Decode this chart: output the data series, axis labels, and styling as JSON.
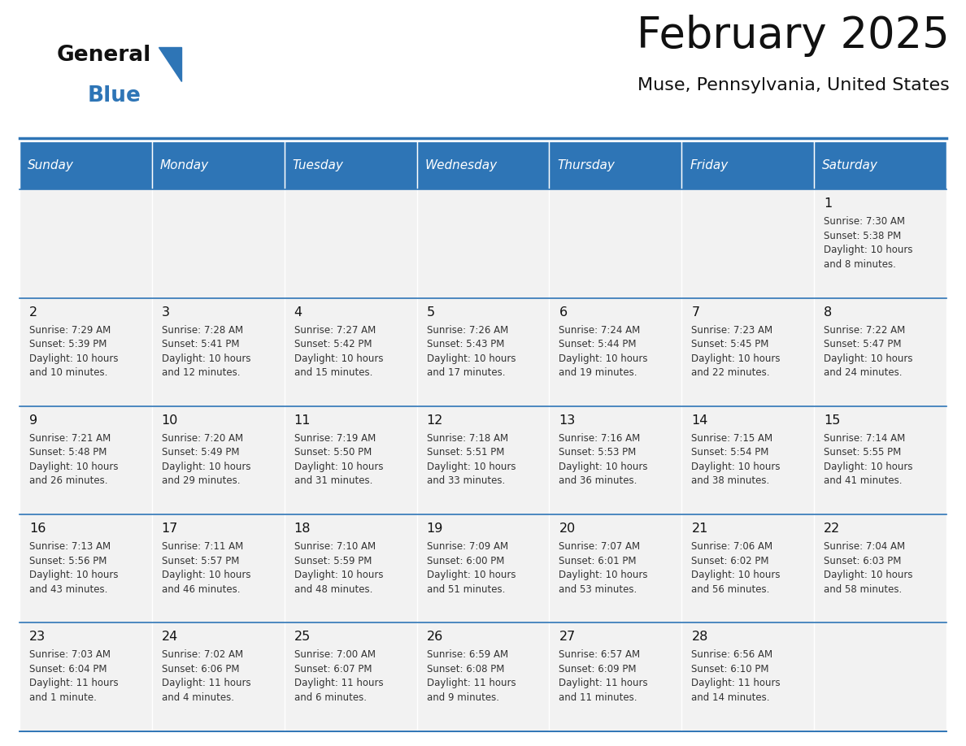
{
  "title": "February 2025",
  "subtitle": "Muse, Pennsylvania, United States",
  "header_bg": "#2E75B6",
  "header_text_color": "#FFFFFF",
  "cell_bg_odd": "#F2F2F2",
  "cell_bg_even": "#FFFFFF",
  "row_line_color": "#2E75B6",
  "text_color": "#333333",
  "days_of_week": [
    "Sunday",
    "Monday",
    "Tuesday",
    "Wednesday",
    "Thursday",
    "Friday",
    "Saturday"
  ],
  "calendar_data": [
    [
      null,
      null,
      null,
      null,
      null,
      null,
      {
        "day": "1",
        "sunrise": "7:30 AM",
        "sunset": "5:38 PM",
        "daylight": "10 hours",
        "daylight2": "and 8 minutes."
      }
    ],
    [
      {
        "day": "2",
        "sunrise": "7:29 AM",
        "sunset": "5:39 PM",
        "daylight": "10 hours",
        "daylight2": "and 10 minutes."
      },
      {
        "day": "3",
        "sunrise": "7:28 AM",
        "sunset": "5:41 PM",
        "daylight": "10 hours",
        "daylight2": "and 12 minutes."
      },
      {
        "day": "4",
        "sunrise": "7:27 AM",
        "sunset": "5:42 PM",
        "daylight": "10 hours",
        "daylight2": "and 15 minutes."
      },
      {
        "day": "5",
        "sunrise": "7:26 AM",
        "sunset": "5:43 PM",
        "daylight": "10 hours",
        "daylight2": "and 17 minutes."
      },
      {
        "day": "6",
        "sunrise": "7:24 AM",
        "sunset": "5:44 PM",
        "daylight": "10 hours",
        "daylight2": "and 19 minutes."
      },
      {
        "day": "7",
        "sunrise": "7:23 AM",
        "sunset": "5:45 PM",
        "daylight": "10 hours",
        "daylight2": "and 22 minutes."
      },
      {
        "day": "8",
        "sunrise": "7:22 AM",
        "sunset": "5:47 PM",
        "daylight": "10 hours",
        "daylight2": "and 24 minutes."
      }
    ],
    [
      {
        "day": "9",
        "sunrise": "7:21 AM",
        "sunset": "5:48 PM",
        "daylight": "10 hours",
        "daylight2": "and 26 minutes."
      },
      {
        "day": "10",
        "sunrise": "7:20 AM",
        "sunset": "5:49 PM",
        "daylight": "10 hours",
        "daylight2": "and 29 minutes."
      },
      {
        "day": "11",
        "sunrise": "7:19 AM",
        "sunset": "5:50 PM",
        "daylight": "10 hours",
        "daylight2": "and 31 minutes."
      },
      {
        "day": "12",
        "sunrise": "7:18 AM",
        "sunset": "5:51 PM",
        "daylight": "10 hours",
        "daylight2": "and 33 minutes."
      },
      {
        "day": "13",
        "sunrise": "7:16 AM",
        "sunset": "5:53 PM",
        "daylight": "10 hours",
        "daylight2": "and 36 minutes."
      },
      {
        "day": "14",
        "sunrise": "7:15 AM",
        "sunset": "5:54 PM",
        "daylight": "10 hours",
        "daylight2": "and 38 minutes."
      },
      {
        "day": "15",
        "sunrise": "7:14 AM",
        "sunset": "5:55 PM",
        "daylight": "10 hours",
        "daylight2": "and 41 minutes."
      }
    ],
    [
      {
        "day": "16",
        "sunrise": "7:13 AM",
        "sunset": "5:56 PM",
        "daylight": "10 hours",
        "daylight2": "and 43 minutes."
      },
      {
        "day": "17",
        "sunrise": "7:11 AM",
        "sunset": "5:57 PM",
        "daylight": "10 hours",
        "daylight2": "and 46 minutes."
      },
      {
        "day": "18",
        "sunrise": "7:10 AM",
        "sunset": "5:59 PM",
        "daylight": "10 hours",
        "daylight2": "and 48 minutes."
      },
      {
        "day": "19",
        "sunrise": "7:09 AM",
        "sunset": "6:00 PM",
        "daylight": "10 hours",
        "daylight2": "and 51 minutes."
      },
      {
        "day": "20",
        "sunrise": "7:07 AM",
        "sunset": "6:01 PM",
        "daylight": "10 hours",
        "daylight2": "and 53 minutes."
      },
      {
        "day": "21",
        "sunrise": "7:06 AM",
        "sunset": "6:02 PM",
        "daylight": "10 hours",
        "daylight2": "and 56 minutes."
      },
      {
        "day": "22",
        "sunrise": "7:04 AM",
        "sunset": "6:03 PM",
        "daylight": "10 hours",
        "daylight2": "and 58 minutes."
      }
    ],
    [
      {
        "day": "23",
        "sunrise": "7:03 AM",
        "sunset": "6:04 PM",
        "daylight": "11 hours",
        "daylight2": "and 1 minute."
      },
      {
        "day": "24",
        "sunrise": "7:02 AM",
        "sunset": "6:06 PM",
        "daylight": "11 hours",
        "daylight2": "and 4 minutes."
      },
      {
        "day": "25",
        "sunrise": "7:00 AM",
        "sunset": "6:07 PM",
        "daylight": "11 hours",
        "daylight2": "and 6 minutes."
      },
      {
        "day": "26",
        "sunrise": "6:59 AM",
        "sunset": "6:08 PM",
        "daylight": "11 hours",
        "daylight2": "and 9 minutes."
      },
      {
        "day": "27",
        "sunrise": "6:57 AM",
        "sunset": "6:09 PM",
        "daylight": "11 hours",
        "daylight2": "and 11 minutes."
      },
      {
        "day": "28",
        "sunrise": "6:56 AM",
        "sunset": "6:10 PM",
        "daylight": "11 hours",
        "daylight2": "and 14 minutes."
      },
      null
    ]
  ]
}
